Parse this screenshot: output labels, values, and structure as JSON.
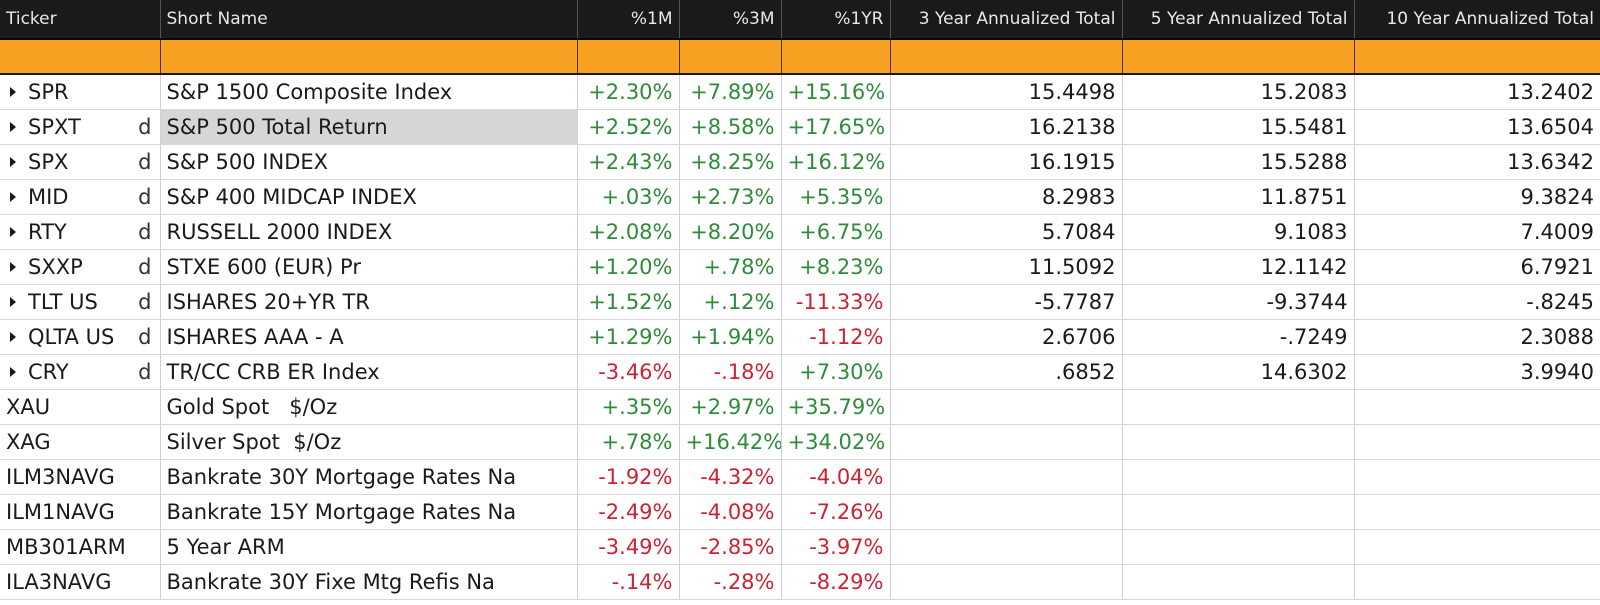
{
  "columns": [
    {
      "key": "ticker",
      "label": "Ticker",
      "align": "left"
    },
    {
      "key": "name",
      "label": "Short Name",
      "align": "left"
    },
    {
      "key": "m1",
      "label": "%1M",
      "align": "right"
    },
    {
      "key": "m3",
      "label": "%3M",
      "align": "right"
    },
    {
      "key": "y1",
      "label": "%1YR",
      "align": "right"
    },
    {
      "key": "y3",
      "label": "3 Year Annualized Total",
      "align": "right"
    },
    {
      "key": "y5",
      "label": "5 Year Annualized Total",
      "align": "right"
    },
    {
      "key": "y10",
      "label": "10 Year Annualized Total",
      "align": "right"
    }
  ],
  "colors": {
    "header_bg": "#1a1a1a",
    "filter_bar": "#f7a021",
    "positive": "#2e8b3a",
    "negative": "#cc2233",
    "selected_cell": "#d6d6d6"
  },
  "rows": [
    {
      "expandable": true,
      "ticker": "SPR",
      "flag": "",
      "name": "S&P 1500 Composite Index",
      "m1": "+2.30%",
      "m3": "+7.89%",
      "y1": "+15.16%",
      "y3": "15.4498",
      "y5": "15.2083",
      "y10": "13.2402"
    },
    {
      "expandable": true,
      "ticker": "SPXT",
      "flag": "d",
      "name": "S&P 500 Total Return",
      "selected": true,
      "m1": "+2.52%",
      "m3": "+8.58%",
      "y1": "+17.65%",
      "y3": "16.2138",
      "y5": "15.5481",
      "y10": "13.6504"
    },
    {
      "expandable": true,
      "ticker": "SPX",
      "flag": "d",
      "name": "S&P 500 INDEX",
      "m1": "+2.43%",
      "m3": "+8.25%",
      "y1": "+16.12%",
      "y3": "16.1915",
      "y5": "15.5288",
      "y10": "13.6342"
    },
    {
      "expandable": true,
      "ticker": "MID",
      "flag": "d",
      "name": "S&P 400 MIDCAP INDEX",
      "m1": "+.03%",
      "m3": "+2.73%",
      "y1": "+5.35%",
      "y3": "8.2983",
      "y5": "11.8751",
      "y10": "9.3824"
    },
    {
      "expandable": true,
      "ticker": "RTY",
      "flag": "d",
      "name": "RUSSELL 2000 INDEX",
      "m1": "+2.08%",
      "m3": "+8.20%",
      "y1": "+6.75%",
      "y3": "5.7084",
      "y5": "9.1083",
      "y10": "7.4009"
    },
    {
      "expandable": true,
      "ticker": "SXXP",
      "flag": "d",
      "name": "STXE 600 (EUR) Pr",
      "m1": "+1.20%",
      "m3": "+.78%",
      "y1": "+8.23%",
      "y3": "11.5092",
      "y5": "12.1142",
      "y10": "6.7921"
    },
    {
      "expandable": true,
      "ticker": "TLT US",
      "flag": "d",
      "name": "ISHARES 20+YR TR",
      "m1": "+1.52%",
      "m3": "+.12%",
      "y1": "-11.33%",
      "y3": "-5.7787",
      "y5": "-9.3744",
      "y10": "-.8245"
    },
    {
      "expandable": true,
      "ticker": "QLTA US",
      "flag": "d",
      "name": "ISHARES AAA - A",
      "m1": "+1.29%",
      "m3": "+1.94%",
      "y1": "-1.12%",
      "y3": "2.6706",
      "y5": "-.7249",
      "y10": "2.3088"
    },
    {
      "expandable": true,
      "ticker": "CRY",
      "flag": "d",
      "name": "TR/CC CRB ER Index",
      "m1": "-3.46%",
      "m3": "-.18%",
      "y1": "+7.30%",
      "y3": ".6852",
      "y5": "14.6302",
      "y10": "3.9940"
    },
    {
      "expandable": false,
      "ticker": "XAU",
      "flag": "",
      "name": "Gold Spot   $/Oz",
      "m1": "+.35%",
      "m3": "+2.97%",
      "y1": "+35.79%",
      "y3": "",
      "y5": "",
      "y10": ""
    },
    {
      "expandable": false,
      "ticker": "XAG",
      "flag": "",
      "name": "Silver Spot  $/Oz",
      "m1": "+.78%",
      "m3": "+16.42%",
      "y1": "+34.02%",
      "y3": "",
      "y5": "",
      "y10": ""
    },
    {
      "expandable": false,
      "ticker": "ILM3NAVG",
      "flag": "",
      "name": "Bankrate 30Y Mortgage Rates Na",
      "m1": "-1.92%",
      "m3": "-4.32%",
      "y1": "-4.04%",
      "y3": "",
      "y5": "",
      "y10": ""
    },
    {
      "expandable": false,
      "ticker": "ILM1NAVG",
      "flag": "",
      "name": "Bankrate 15Y Mortgage Rates Na",
      "m1": "-2.49%",
      "m3": "-4.08%",
      "y1": "-7.26%",
      "y3": "",
      "y5": "",
      "y10": ""
    },
    {
      "expandable": false,
      "ticker": "MB301ARM",
      "flag": "",
      "name": "5 Year ARM",
      "m1": "-3.49%",
      "m3": "-2.85%",
      "y1": "-3.97%",
      "y3": "",
      "y5": "",
      "y10": ""
    },
    {
      "expandable": false,
      "ticker": "ILA3NAVG",
      "flag": "",
      "name": "Bankrate 30Y Fixe Mtg Refis Na",
      "m1": "-.14%",
      "m3": "-.28%",
      "y1": "-8.29%",
      "y3": "",
      "y5": "",
      "y10": ""
    }
  ]
}
